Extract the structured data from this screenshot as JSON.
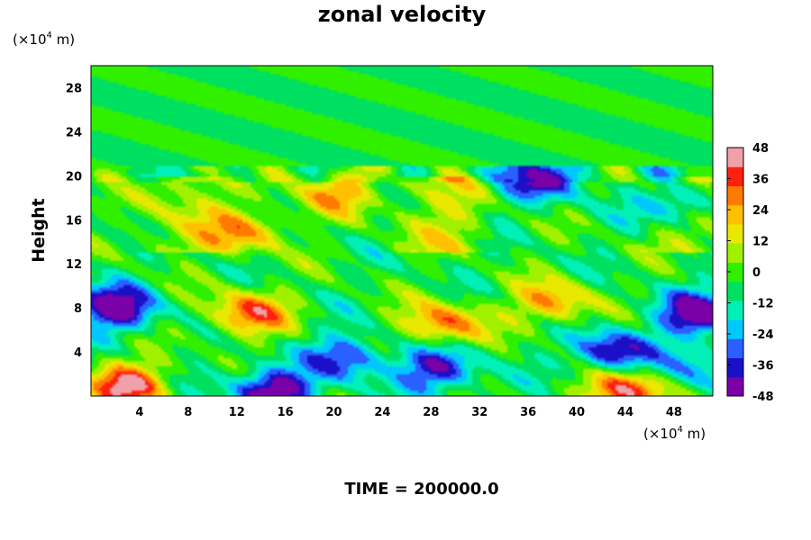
{
  "chart_data": {
    "type": "heatmap",
    "title": "zonal velocity",
    "ylabel": "Height",
    "xlabel": "",
    "x_unit_label": [
      "(×10",
      "4",
      " m)"
    ],
    "y_unit_label": [
      "(×10",
      "4",
      " m)"
    ],
    "x_ticks": [
      "4",
      "8",
      "12",
      "16",
      "20",
      "24",
      "28",
      "32",
      "36",
      "40",
      "44",
      "48"
    ],
    "y_ticks": [
      "4",
      "8",
      "12",
      "16",
      "20",
      "24",
      "28"
    ],
    "xlim": [
      0,
      51.2
    ],
    "ylim": [
      0,
      30
    ],
    "colorbar": {
      "ticks": [
        "48",
        "36",
        "24",
        "12",
        "0",
        "-12",
        "-24",
        "-36",
        "-48"
      ],
      "range": [
        -48,
        48
      ],
      "colors": [
        "#7a00a8",
        "#1a10c8",
        "#2a60ff",
        "#00c8ff",
        "#00f0b8",
        "#00e060",
        "#30f000",
        "#a0f000",
        "#e8e800",
        "#ffc000",
        "#ff7a00",
        "#ff2010",
        "#f0a0a8"
      ]
    },
    "field_features": [
      {
        "x": 13,
        "y": 7.5,
        "value": 38
      },
      {
        "x": 29,
        "y": 6.5,
        "value": 36
      },
      {
        "x": 2,
        "y": 8,
        "value": -48
      },
      {
        "x": 15,
        "y": 0.5,
        "value": -48
      },
      {
        "x": 43,
        "y": 4,
        "value": -40
      },
      {
        "x": 44,
        "y": 0.5,
        "value": 46
      },
      {
        "x": 3,
        "y": 1,
        "value": 46
      },
      {
        "x": 50,
        "y": 7.5,
        "value": -46
      },
      {
        "x": 37,
        "y": 19.8,
        "value": -40
      },
      {
        "x": 13,
        "y": 15,
        "value": 26
      },
      {
        "x": 20,
        "y": 18.5,
        "value": 28
      },
      {
        "x": 38,
        "y": 8.5,
        "value": 30
      },
      {
        "x": 21,
        "y": 3.5,
        "value": -32
      },
      {
        "x": 28.5,
        "y": 2.5,
        "value": -38
      },
      {
        "x": 48.5,
        "y": 17.5,
        "value": -34
      },
      {
        "x": 50,
        "y": 2.5,
        "value": -20
      }
    ]
  },
  "footer": {
    "time_label": "TIME = 200000.0"
  }
}
